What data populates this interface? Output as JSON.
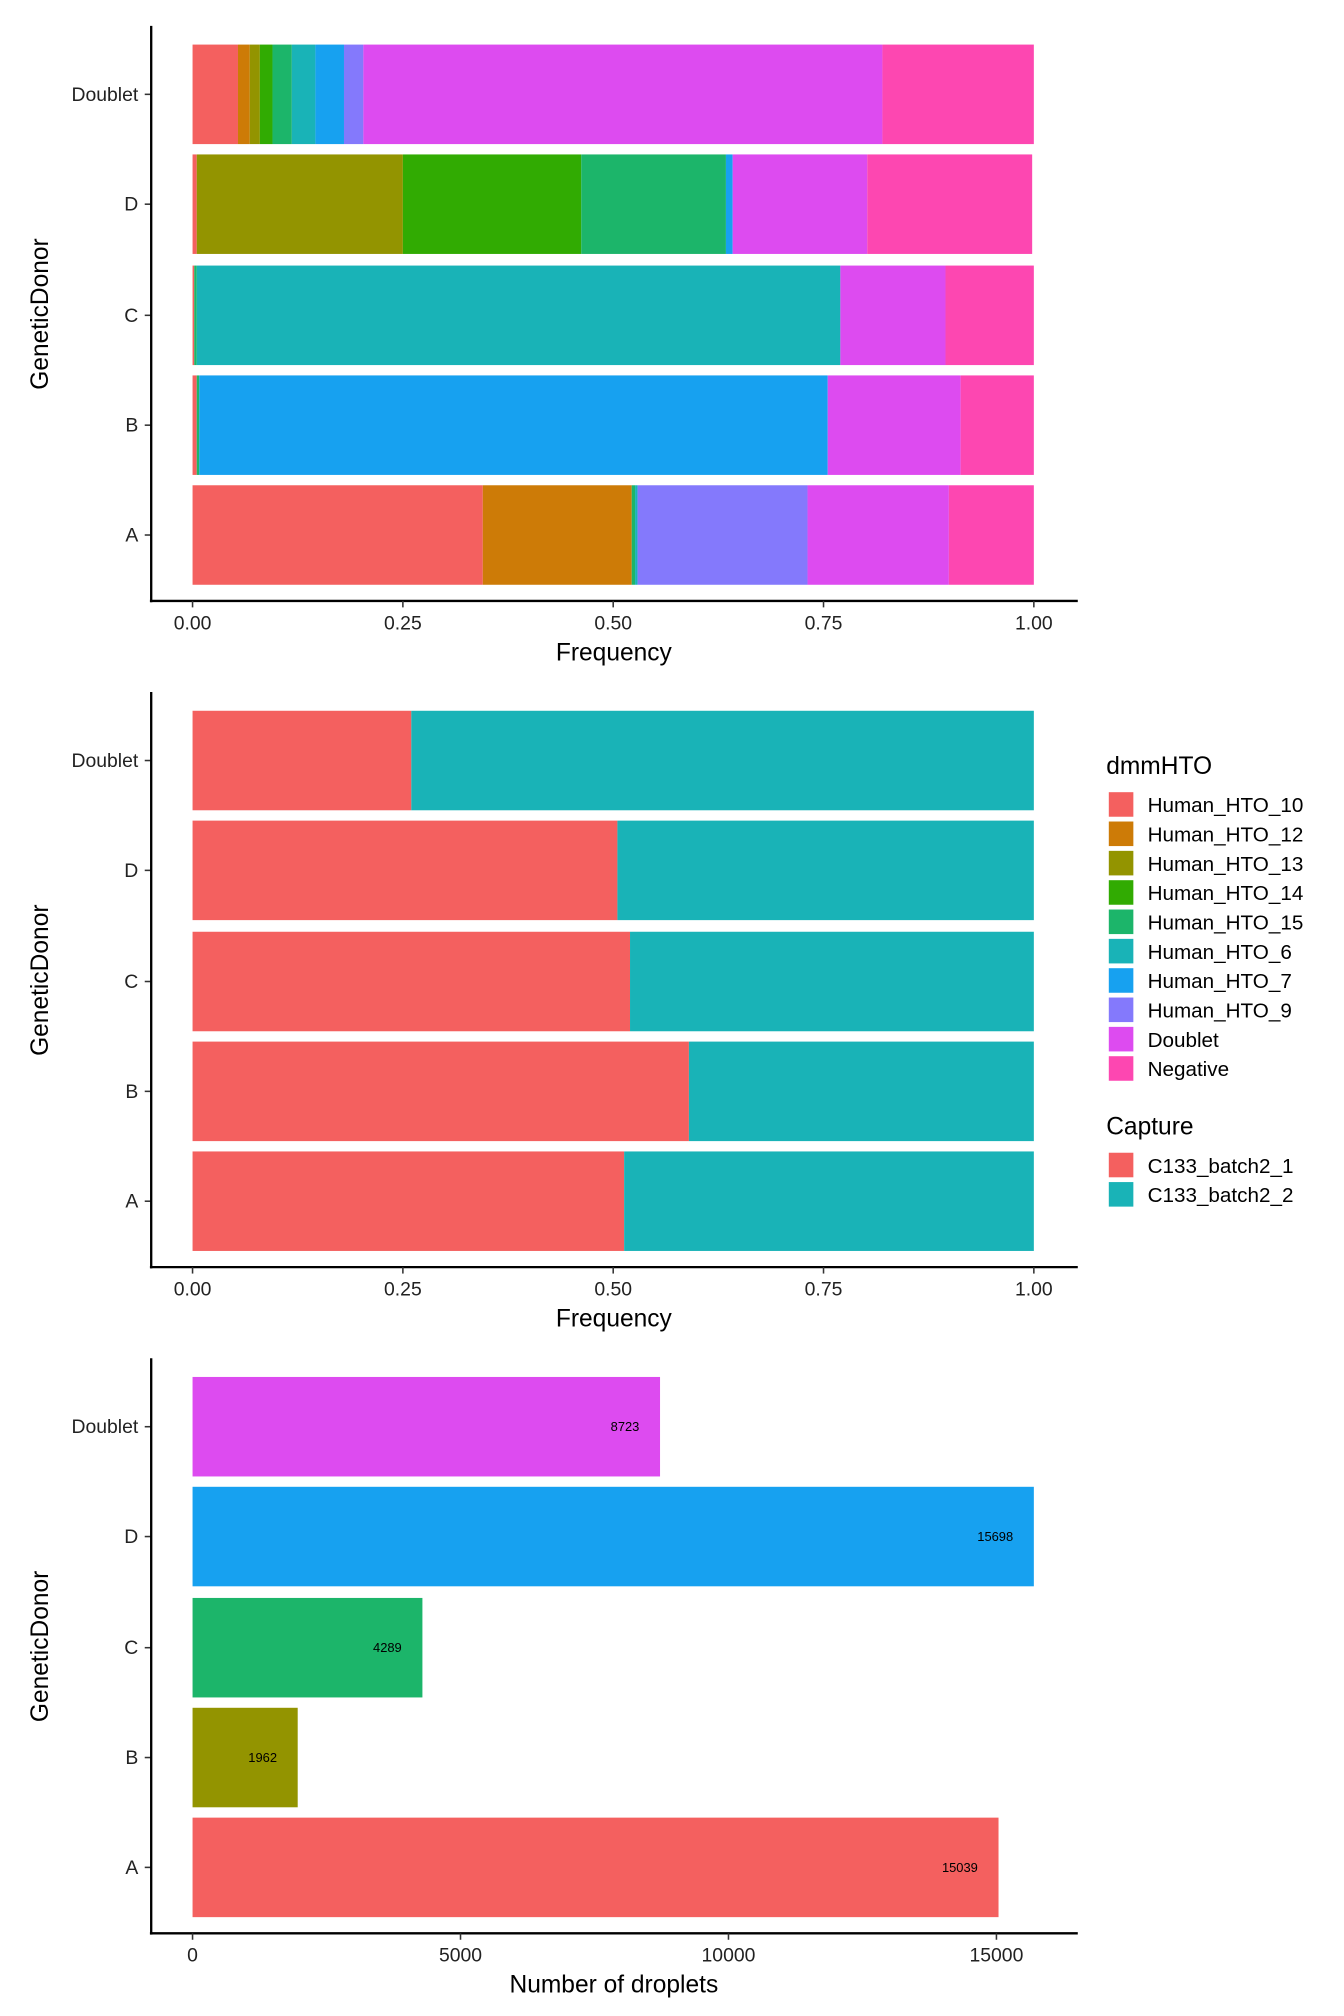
{
  "colors": {
    "Human_HTO_10": "#F8766D",
    "Human_HTO_12": "#D39200",
    "Human_HTO_13": "#93AA00",
    "Human_HTO_14": "#00BA38",
    "Human_HTO_15": "#00C19F",
    "Human_HTO_6": "#00B9E3",
    "Human_HTO_7": "#619CFF",
    "Human_HTO_9": "#8B7CFF",
    "Doublet": "#DB4BF0",
    "Negative": "#FF45B0",
    "C133_batch2_1": "#F4605F",
    "C133_batch2_2": "#19B3B7"
  },
  "legend": {
    "dmmHTO": {
      "title": "dmmHTO",
      "items": [
        "Human_HTO_10",
        "Human_HTO_12",
        "Human_HTO_13",
        "Human_HTO_14",
        "Human_HTO_15",
        "Human_HTO_6",
        "Human_HTO_7",
        "Human_HTO_9",
        "Doublet",
        "Negative"
      ]
    },
    "Capture": {
      "title": "Capture",
      "items": [
        "C133_batch2_1",
        "C133_batch2_2"
      ]
    },
    "placement": "right"
  },
  "chart_data": [
    {
      "type": "bar",
      "orientation": "horizontal",
      "stacked": "fill",
      "fill": "dmmHTO",
      "xlabel": "Frequency",
      "ylabel": "GeneticDonor",
      "xlim": [
        0,
        1
      ],
      "xticks": [
        "0.00",
        "0.25",
        "0.50",
        "0.75",
        "1.00"
      ],
      "categories": [
        "A",
        "B",
        "C",
        "D",
        "Doublet"
      ],
      "series": [
        {
          "name": "Human_HTO_10",
          "values": [
            0.345,
            0.005,
            0.002,
            0.005,
            0.054
          ]
        },
        {
          "name": "Human_HTO_12",
          "values": [
            0.177,
            0,
            0,
            0,
            0.014
          ]
        },
        {
          "name": "Human_HTO_13",
          "values": [
            0,
            0,
            0,
            0.245,
            0.012
          ]
        },
        {
          "name": "Human_HTO_14",
          "values": [
            0,
            0,
            0,
            0.212,
            0.015
          ]
        },
        {
          "name": "Human_HTO_15",
          "values": [
            0.004,
            0.003,
            0.003,
            0.172,
            0.023
          ]
        },
        {
          "name": "Human_HTO_6",
          "values": [
            0.003,
            0,
            0.765,
            0,
            0.028
          ]
        },
        {
          "name": "Human_HTO_7",
          "values": [
            0,
            0.747,
            0,
            0.008,
            0.034
          ]
        },
        {
          "name": "Human_HTO_9",
          "values": [
            0.202,
            0,
            0,
            0,
            0.023
          ]
        },
        {
          "name": "Doublet",
          "values": [
            0.168,
            0.158,
            0.125,
            0.16,
            0.617
          ]
        },
        {
          "name": "Negative",
          "values": [
            0.101,
            0.087,
            0.105,
            0.196,
            0.18
          ]
        }
      ]
    },
    {
      "type": "bar",
      "orientation": "horizontal",
      "stacked": "fill",
      "fill": "Capture",
      "xlabel": "Frequency",
      "ylabel": "GeneticDonor",
      "xlim": [
        0,
        1
      ],
      "xticks": [
        "0.00",
        "0.25",
        "0.50",
        "0.75",
        "1.00"
      ],
      "categories": [
        "A",
        "B",
        "C",
        "D",
        "Doublet"
      ],
      "series": [
        {
          "name": "C133_batch2_1",
          "values": [
            0.513,
            0.59,
            0.52,
            0.505,
            0.26
          ]
        },
        {
          "name": "C133_batch2_2",
          "values": [
            0.487,
            0.41,
            0.48,
            0.495,
            0.74
          ]
        }
      ]
    },
    {
      "type": "bar",
      "orientation": "horizontal",
      "xlabel": "Number of droplets",
      "ylabel": "GeneticDonor",
      "xlim": [
        0,
        15698
      ],
      "xticks": [
        "0",
        "5000",
        "10000",
        "15000"
      ],
      "xtick_values": [
        0,
        5000,
        10000,
        15000
      ],
      "categories": [
        "A",
        "B",
        "C",
        "D",
        "Doublet"
      ],
      "values": [
        15039,
        1962,
        4289,
        15698,
        8723
      ],
      "data_labels": [
        "15039",
        "1962",
        "4289",
        "15698",
        "8723"
      ],
      "bar_colors": [
        "#F4605F",
        "#939400",
        "#1CB56A",
        "#17A1F0",
        "#DD4BF0"
      ]
    }
  ]
}
